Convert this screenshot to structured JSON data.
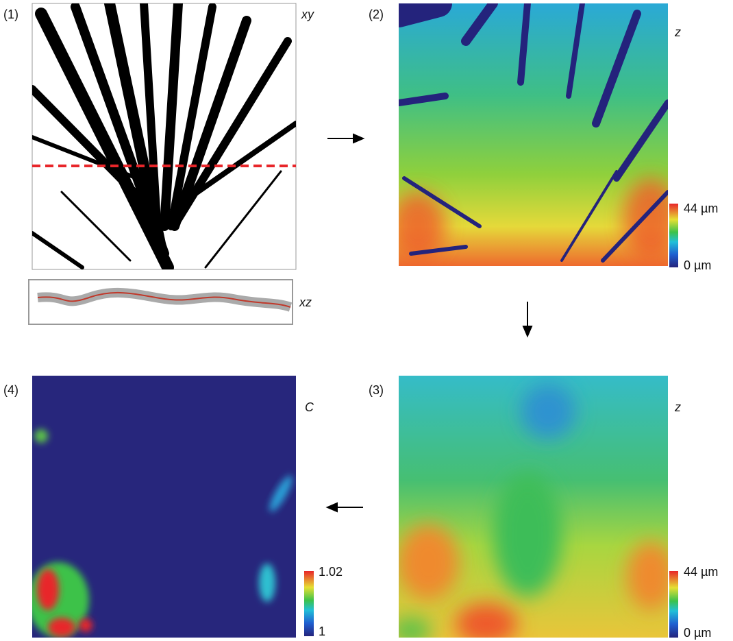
{
  "panels": [
    {
      "label": "(1)",
      "axis_label": "xy",
      "inset_label": "xz"
    },
    {
      "label": "(2)",
      "axis_label": "z",
      "colorbar": {
        "max_label": "44 µm",
        "min_label": "0 µm"
      }
    },
    {
      "label": "(3)",
      "axis_label": "z",
      "colorbar": {
        "max_label": "44 µm",
        "min_label": "0 µm"
      }
    },
    {
      "label": "(4)",
      "axis_label": "C",
      "colorbar": {
        "max_label": "1.02",
        "min_label": "1"
      }
    }
  ]
}
